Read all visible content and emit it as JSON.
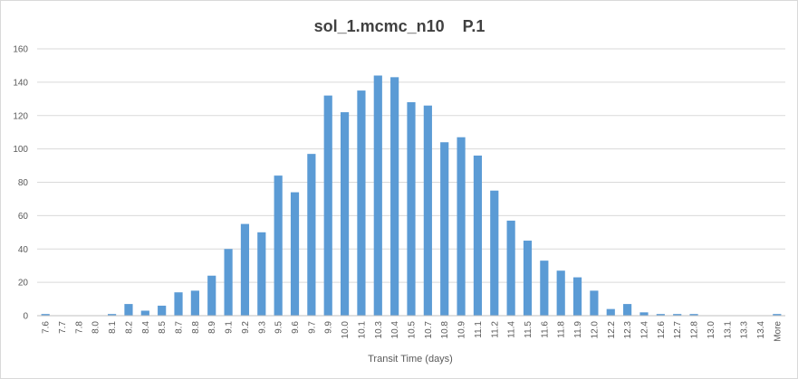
{
  "chart_data": {
    "type": "bar",
    "title": "sol_1.mcmc_n10    P.1",
    "xlabel": "Transit Time (days)",
    "ylabel": "",
    "ylim": [
      0,
      160
    ],
    "yticks": [
      0,
      20,
      40,
      60,
      80,
      100,
      120,
      140,
      160
    ],
    "grid": true,
    "legend": "none",
    "bar_color": "#5b9bd5",
    "categories": [
      "7.6",
      "7.7",
      "7.8",
      "8.0",
      "8.1",
      "8.2",
      "8.4",
      "8.5",
      "8.7",
      "8.8",
      "8.9",
      "9.1",
      "9.2",
      "9.3",
      "9.5",
      "9.6",
      "9.7",
      "9.9",
      "10.0",
      "10.1",
      "10.3",
      "10.4",
      "10.5",
      "10.7",
      "10.8",
      "10.9",
      "11.1",
      "11.2",
      "11.4",
      "11.5",
      "11.6",
      "11.8",
      "11.9",
      "12.0",
      "12.2",
      "12.3",
      "12.4",
      "12.6",
      "12.7",
      "12.8",
      "13.0",
      "13.1",
      "13.3",
      "13.4",
      "More"
    ],
    "values": [
      1,
      0,
      0,
      0,
      1,
      7,
      3,
      6,
      14,
      15,
      24,
      40,
      55,
      50,
      84,
      74,
      97,
      132,
      122,
      135,
      144,
      143,
      128,
      126,
      104,
      107,
      96,
      75,
      57,
      45,
      33,
      27,
      23,
      15,
      4,
      7,
      2,
      1,
      1,
      1,
      0,
      0,
      0,
      0,
      1
    ]
  }
}
